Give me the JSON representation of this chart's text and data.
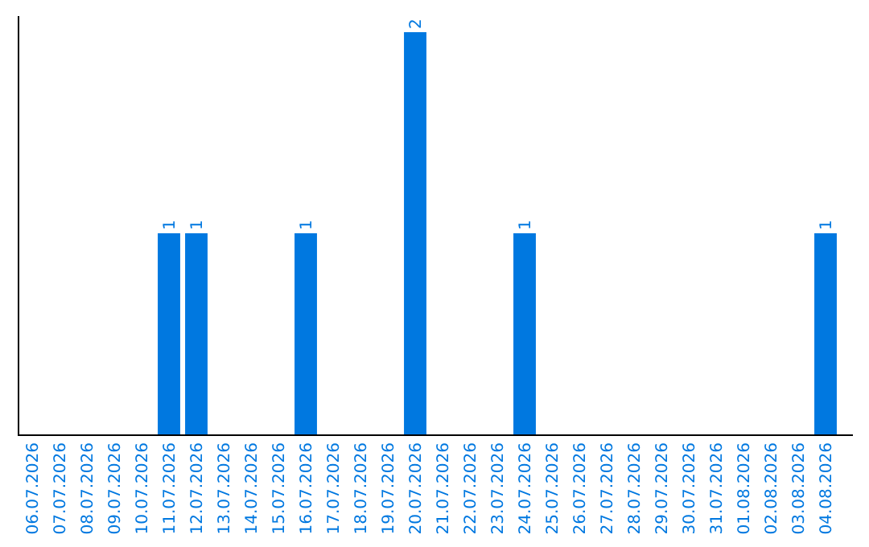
{
  "chart_data": {
    "type": "bar",
    "categories": [
      "06.07.2026",
      "07.07.2026",
      "08.07.2026",
      "09.07.2026",
      "10.07.2026",
      "11.07.2026",
      "12.07.2026",
      "13.07.2026",
      "14.07.2026",
      "15.07.2026",
      "16.07.2026",
      "17.07.2026",
      "18.07.2026",
      "19.07.2026",
      "20.07.2026",
      "21.07.2026",
      "22.07.2026",
      "23.07.2026",
      "24.07.2026",
      "25.07.2026",
      "26.07.2026",
      "27.07.2026",
      "28.07.2026",
      "29.07.2026",
      "30.07.2026",
      "31.07.2026",
      "01.08.2026",
      "02.08.2026",
      "03.08.2026",
      "04.08.2026"
    ],
    "values": [
      0,
      0,
      0,
      0,
      0,
      1,
      1,
      0,
      0,
      0,
      1,
      0,
      0,
      0,
      2,
      0,
      0,
      0,
      1,
      0,
      0,
      0,
      0,
      0,
      0,
      0,
      0,
      0,
      0,
      1
    ],
    "value_labels": [
      null,
      null,
      null,
      null,
      null,
      "1",
      "1",
      null,
      null,
      null,
      "1",
      null,
      null,
      null,
      "2",
      null,
      null,
      null,
      "1",
      null,
      null,
      null,
      null,
      null,
      null,
      null,
      null,
      null,
      null,
      "1"
    ],
    "color": "#0078e0",
    "ylim": [
      0,
      2
    ],
    "tick_labels": "x"
  }
}
